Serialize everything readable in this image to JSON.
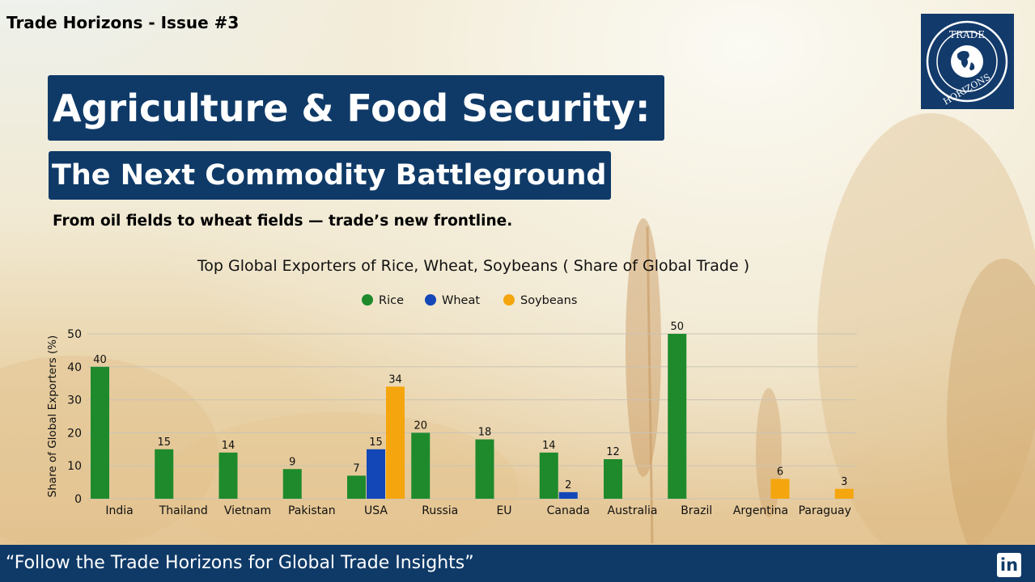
{
  "header": {
    "issue": "Trade Horizons - Issue #3"
  },
  "logo": {
    "text_top": "TRADE",
    "text_bottom": "HORIZONS"
  },
  "headline": {
    "title": "Agriculture & Food Security:",
    "subtitle": "The Next Commodity Battleground",
    "tagline": "From oil fields to wheat fields — trade’s new frontline."
  },
  "chart_data": {
    "type": "bar",
    "title": "Top Global Exporters of Rice, Wheat, Soybeans ( Share of Global Trade )",
    "ylabel": "Share of Global Exporters (%)",
    "xlabel": "",
    "ylim": [
      0,
      50
    ],
    "yticks": [
      0,
      10,
      20,
      30,
      40,
      50
    ],
    "grid": true,
    "legend_position": "top-center",
    "categories": [
      "India",
      "Thailand",
      "Vietnam",
      "Pakistan",
      "USA",
      "Russia",
      "EU",
      "Canada",
      "Australia",
      "Brazil",
      "Argentina",
      "Paraguay"
    ],
    "series": [
      {
        "name": "Rice",
        "color": "#1e8a2c",
        "values": [
          40,
          15,
          14,
          9,
          7,
          20,
          18,
          14,
          12,
          50,
          null,
          null
        ]
      },
      {
        "name": "Wheat",
        "color": "#1347b8",
        "values": [
          null,
          null,
          null,
          null,
          15,
          null,
          null,
          2,
          null,
          null,
          null,
          null
        ]
      },
      {
        "name": "Soybeans",
        "color": "#f5a50d",
        "values": [
          null,
          null,
          null,
          null,
          34,
          null,
          null,
          null,
          null,
          null,
          6,
          3
        ]
      }
    ]
  },
  "footer": {
    "text": "“Follow the Trade Horizons for Global Trade Insights”",
    "linkedin_label": "in",
    "linkedin_icon": "linkedin-icon"
  }
}
